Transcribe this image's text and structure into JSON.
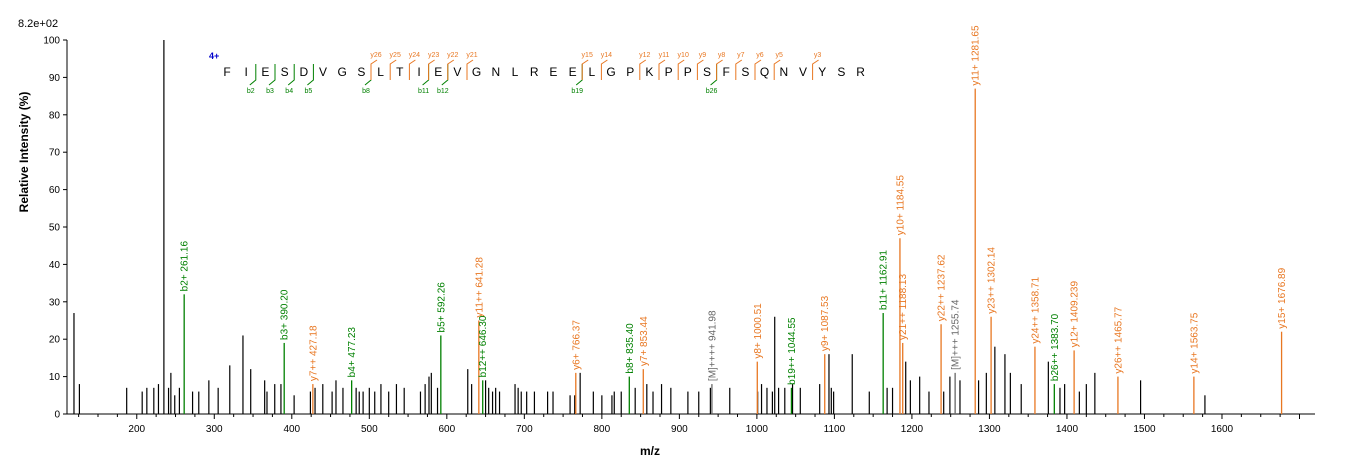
{
  "chart_data": {
    "type": "bar",
    "ymax_text": "8.2e+02",
    "xlabel": "m/z",
    "ylabel": "Relative  Intensity (%)",
    "xlim": [
      110,
      1720
    ],
    "ylim": [
      0,
      100
    ],
    "x_ticks": [
      200,
      300,
      400,
      500,
      600,
      700,
      800,
      900,
      1000,
      1100,
      1200,
      1300,
      1400,
      1500,
      1600
    ],
    "y_ticks": [
      0,
      10,
      20,
      30,
      40,
      50,
      60,
      70,
      80,
      90,
      100
    ],
    "colors": {
      "b": "#008000",
      "y": "#e87722",
      "other": "#666666",
      "unlabeled": "#000000",
      "charge": "#0000cc"
    },
    "precursor_charge": "4+",
    "sequence": [
      "F",
      "I",
      "E",
      "S",
      "D",
      "V",
      "G",
      "S",
      "L",
      "T",
      "I",
      "E",
      "V",
      "G",
      "N",
      "L",
      "R",
      "E",
      "E",
      "L",
      "G",
      "P",
      "K",
      "P",
      "P",
      "S",
      "F",
      "S",
      "Q",
      "N",
      "V",
      "Y",
      "S",
      "R"
    ],
    "b_ions": [
      {
        "label": "b2",
        "after": 2
      },
      {
        "label": "b3",
        "after": 3
      },
      {
        "label": "b4",
        "after": 4
      },
      {
        "label": "b5",
        "after": 5
      },
      {
        "label": "b8",
        "after": 8
      },
      {
        "label": "b11",
        "after": 11
      },
      {
        "label": "b12",
        "after": 12
      },
      {
        "label": "b19",
        "after": 19
      },
      {
        "label": "b26",
        "after": 26
      }
    ],
    "y_ions": [
      {
        "label": "y26",
        "after": 8
      },
      {
        "label": "y25",
        "after": 9
      },
      {
        "label": "y24",
        "after": 10
      },
      {
        "label": "y23",
        "after": 11
      },
      {
        "label": "y22",
        "after": 12
      },
      {
        "label": "y21",
        "after": 13
      },
      {
        "label": "y15",
        "after": 19
      },
      {
        "label": "y14",
        "after": 20
      },
      {
        "label": "y12",
        "after": 22
      },
      {
        "label": "y11",
        "after": 23
      },
      {
        "label": "y10",
        "after": 24
      },
      {
        "label": "y9",
        "after": 25
      },
      {
        "label": "y8",
        "after": 26
      },
      {
        "label": "y7",
        "after": 27
      },
      {
        "label": "y6",
        "after": 28
      },
      {
        "label": "y5",
        "after": 29
      },
      {
        "label": "y3",
        "after": 31
      }
    ],
    "labeled_peaks": [
      {
        "mz": 261.16,
        "i": 32,
        "label": "b2+ 261.16",
        "ion": "b"
      },
      {
        "mz": 390.2,
        "i": 19,
        "label": "b3+ 390.20",
        "ion": "b"
      },
      {
        "mz": 427.18,
        "i": 8,
        "label": "y7++ 427.18",
        "ion": "y"
      },
      {
        "mz": 477.23,
        "i": 9,
        "label": "b4+ 477.23",
        "ion": "b"
      },
      {
        "mz": 592.26,
        "i": 21,
        "label": "b5+ 592.26",
        "ion": "b"
      },
      {
        "mz": 641.28,
        "i": 25,
        "label": "y11++ 641.28",
        "ion": "y"
      },
      {
        "mz": 646.3,
        "i": 9,
        "label": "b12++ 646.30",
        "ion": "b"
      },
      {
        "mz": 766.37,
        "i": 11,
        "label": "y6+ 766.37",
        "ion": "y"
      },
      {
        "mz": 835.4,
        "i": 10,
        "label": "b8+ 835.40",
        "ion": "b"
      },
      {
        "mz": 853.44,
        "i": 12,
        "label": "y7+ 853.44",
        "ion": "y"
      },
      {
        "mz": 941.98,
        "i": 8,
        "label": "[M]++++ 941.98",
        "ion": "other"
      },
      {
        "mz": 1000.51,
        "i": 14,
        "label": "y8+ 1000.51",
        "ion": "y"
      },
      {
        "mz": 1044.55,
        "i": 7,
        "label": "b19++ 1044.55",
        "ion": "b"
      },
      {
        "mz": 1087.53,
        "i": 16,
        "label": "y9+ 1087.53",
        "ion": "y"
      },
      {
        "mz": 1162.91,
        "i": 27,
        "label": "b11+ 1162.91",
        "ion": "b"
      },
      {
        "mz": 1184.55,
        "i": 47,
        "label": "y10+ 1184.55",
        "ion": "y"
      },
      {
        "mz": 1188.13,
        "i": 19,
        "label": "y21++ 1188.13",
        "ion": "y"
      },
      {
        "mz": 1237.62,
        "i": 24,
        "label": "y22++ 1237.62",
        "ion": "y"
      },
      {
        "mz": 1255.74,
        "i": 11,
        "label": "[M]+++ 1255.74",
        "ion": "other"
      },
      {
        "mz": 1281.65,
        "i": 87,
        "label": "y11+ 1281.65",
        "ion": "y"
      },
      {
        "mz": 1302.14,
        "i": 26,
        "label": "y23++ 1302.14",
        "ion": "y"
      },
      {
        "mz": 1358.71,
        "i": 18,
        "label": "y24++ 1358.71",
        "ion": "y"
      },
      {
        "mz": 1383.7,
        "i": 8,
        "label": "b26++ 1383.70",
        "ion": "b"
      },
      {
        "mz": 1409.239,
        "i": 17,
        "label": "y12+ 1409.239",
        "ion": "y"
      },
      {
        "mz": 1465.77,
        "i": 10,
        "label": "y26++ 1465.77",
        "ion": "y"
      },
      {
        "mz": 1563.75,
        "i": 10,
        "label": "y14+ 1563.75",
        "ion": "y"
      },
      {
        "mz": 1676.89,
        "i": 22,
        "label": "y15+ 1676.89",
        "ion": "y"
      }
    ],
    "unlabeled_peaks": [
      [
        119,
        27
      ],
      [
        126,
        8
      ],
      [
        187,
        7
      ],
      [
        207,
        6
      ],
      [
        213,
        7
      ],
      [
        222,
        7
      ],
      [
        228,
        8
      ],
      [
        235,
        100
      ],
      [
        241,
        7
      ],
      [
        244,
        11
      ],
      [
        249,
        5
      ],
      [
        255,
        7
      ],
      [
        272,
        6
      ],
      [
        280,
        6
      ],
      [
        293,
        9
      ],
      [
        305,
        7
      ],
      [
        320,
        13
      ],
      [
        337,
        21
      ],
      [
        347,
        12
      ],
      [
        365,
        9
      ],
      [
        368,
        6
      ],
      [
        378,
        8
      ],
      [
        386,
        8
      ],
      [
        403,
        5
      ],
      [
        424,
        6
      ],
      [
        430,
        7
      ],
      [
        440,
        8
      ],
      [
        452,
        6
      ],
      [
        457,
        9
      ],
      [
        466,
        7
      ],
      [
        483,
        7
      ],
      [
        487,
        6
      ],
      [
        492,
        6
      ],
      [
        500,
        7
      ],
      [
        507,
        6
      ],
      [
        515,
        8
      ],
      [
        525,
        6
      ],
      [
        535,
        8
      ],
      [
        545,
        7
      ],
      [
        566,
        6
      ],
      [
        572,
        8
      ],
      [
        577,
        10
      ],
      [
        580,
        11
      ],
      [
        588,
        7
      ],
      [
        627,
        12
      ],
      [
        632,
        8
      ],
      [
        650,
        9
      ],
      [
        654,
        7
      ],
      [
        659,
        6
      ],
      [
        663,
        7
      ],
      [
        668,
        6
      ],
      [
        688,
        8
      ],
      [
        692,
        7
      ],
      [
        696,
        6
      ],
      [
        703,
        6
      ],
      [
        713,
        6
      ],
      [
        730,
        6
      ],
      [
        737,
        6
      ],
      [
        759,
        5
      ],
      [
        765,
        5
      ],
      [
        772,
        11
      ],
      [
        789,
        6
      ],
      [
        800,
        5
      ],
      [
        813,
        5
      ],
      [
        816,
        6
      ],
      [
        825,
        6
      ],
      [
        843,
        7
      ],
      [
        858,
        8
      ],
      [
        866,
        6
      ],
      [
        877,
        8
      ],
      [
        889,
        7
      ],
      [
        911,
        6
      ],
      [
        925,
        6
      ],
      [
        940,
        7
      ],
      [
        965,
        7
      ],
      [
        1001,
        6
      ],
      [
        1006,
        8
      ],
      [
        1013,
        7
      ],
      [
        1020,
        6
      ],
      [
        1023,
        26
      ],
      [
        1028,
        7
      ],
      [
        1036,
        7
      ],
      [
        1046,
        8
      ],
      [
        1056,
        7
      ],
      [
        1081,
        8
      ],
      [
        1093,
        16
      ],
      [
        1096,
        7
      ],
      [
        1099,
        6
      ],
      [
        1123,
        16
      ],
      [
        1145,
        6
      ],
      [
        1168,
        7
      ],
      [
        1175,
        7
      ],
      [
        1192,
        14
      ],
      [
        1198,
        9
      ],
      [
        1210,
        10
      ],
      [
        1222,
        6
      ],
      [
        1241,
        6
      ],
      [
        1249,
        10
      ],
      [
        1262,
        9
      ],
      [
        1286,
        9
      ],
      [
        1296,
        11
      ],
      [
        1307,
        18
      ],
      [
        1320,
        16
      ],
      [
        1327,
        11
      ],
      [
        1341,
        8
      ],
      [
        1376,
        14
      ],
      [
        1391,
        7
      ],
      [
        1397,
        8
      ],
      [
        1416,
        6
      ],
      [
        1425,
        8
      ],
      [
        1436,
        11
      ],
      [
        1495,
        9
      ],
      [
        1578,
        5
      ]
    ]
  }
}
